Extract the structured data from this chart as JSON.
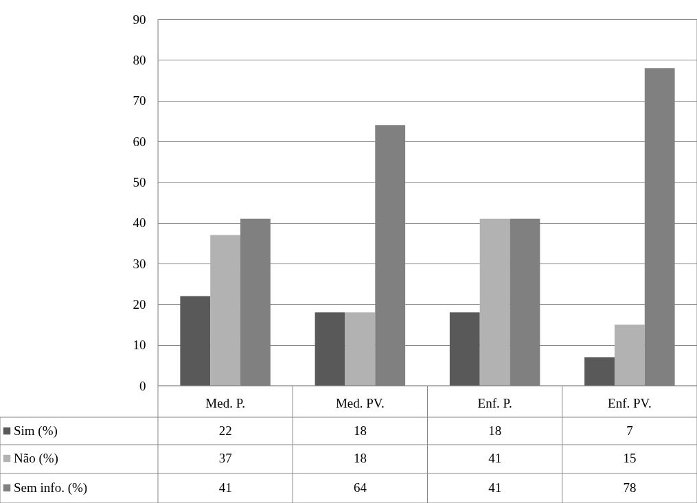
{
  "chart_data": {
    "type": "bar",
    "categories": [
      "Med. P.",
      "Med. PV.",
      "Enf. P.",
      "Enf. PV."
    ],
    "series": [
      {
        "name": "Sim (%)",
        "color": "#595959",
        "values": [
          22,
          18,
          18,
          7
        ]
      },
      {
        "name": "Não (%)",
        "color": "#b2b2b2",
        "values": [
          37,
          18,
          41,
          15
        ]
      },
      {
        "name": "Sem info. (%)",
        "color": "#808080",
        "values": [
          41,
          64,
          41,
          78
        ]
      }
    ],
    "ylim": [
      0,
      90
    ],
    "yticks": [
      0,
      10,
      20,
      30,
      40,
      50,
      60,
      70,
      80,
      90
    ],
    "grid": "y",
    "legend": "bottom",
    "data_labels": true
  }
}
